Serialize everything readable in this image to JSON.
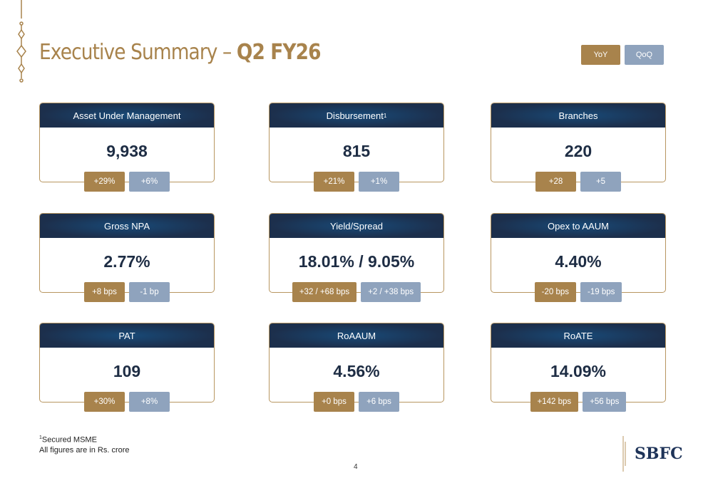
{
  "header": {
    "title_regular": "Executive Summary – ",
    "title_bold": "Q2 FY26",
    "toggle": {
      "yoy": "YoY",
      "qoq": "QoQ"
    }
  },
  "colors": {
    "gold": "#a8834c",
    "navy": "#1c2f4c",
    "slate": "#8fa3bd"
  },
  "cards": [
    {
      "title": "Asset Under Management",
      "sup": "",
      "value": "9,938",
      "yoy": "+29%",
      "qoq": "+6%"
    },
    {
      "title": "Disbursement",
      "sup": "1",
      "value": "815",
      "yoy": "+21%",
      "qoq": "+1%"
    },
    {
      "title": "Branches",
      "sup": "",
      "value": "220",
      "yoy": "+28",
      "qoq": "+5"
    },
    {
      "title": "Gross NPA",
      "sup": "",
      "value": "2.77%",
      "yoy": "+8 bps",
      "qoq": "-1 bp"
    },
    {
      "title": "Yield/Spread",
      "sup": "",
      "value": "18.01% / 9.05%",
      "yoy": "+32 / +68 bps",
      "qoq": "+2 / +38 bps"
    },
    {
      "title": "Opex to AAUM",
      "sup": "",
      "value": "4.40%",
      "yoy": "-20 bps",
      "qoq": "-19 bps"
    },
    {
      "title": "PAT",
      "sup": "",
      "value": "109",
      "yoy": "+30%",
      "qoq": "+8%"
    },
    {
      "title": "RoAAUM",
      "sup": "",
      "value": "4.56%",
      "yoy": "+0 bps",
      "qoq": "+6 bps"
    },
    {
      "title": "RoATE",
      "sup": "",
      "value": "14.09%",
      "yoy": "+142 bps",
      "qoq": "+56 bps"
    }
  ],
  "footnote": {
    "sup": "1",
    "line1": "Secured MSME",
    "line2": "All figures are in Rs. crore"
  },
  "page_number": "4",
  "logo": "SBFC"
}
